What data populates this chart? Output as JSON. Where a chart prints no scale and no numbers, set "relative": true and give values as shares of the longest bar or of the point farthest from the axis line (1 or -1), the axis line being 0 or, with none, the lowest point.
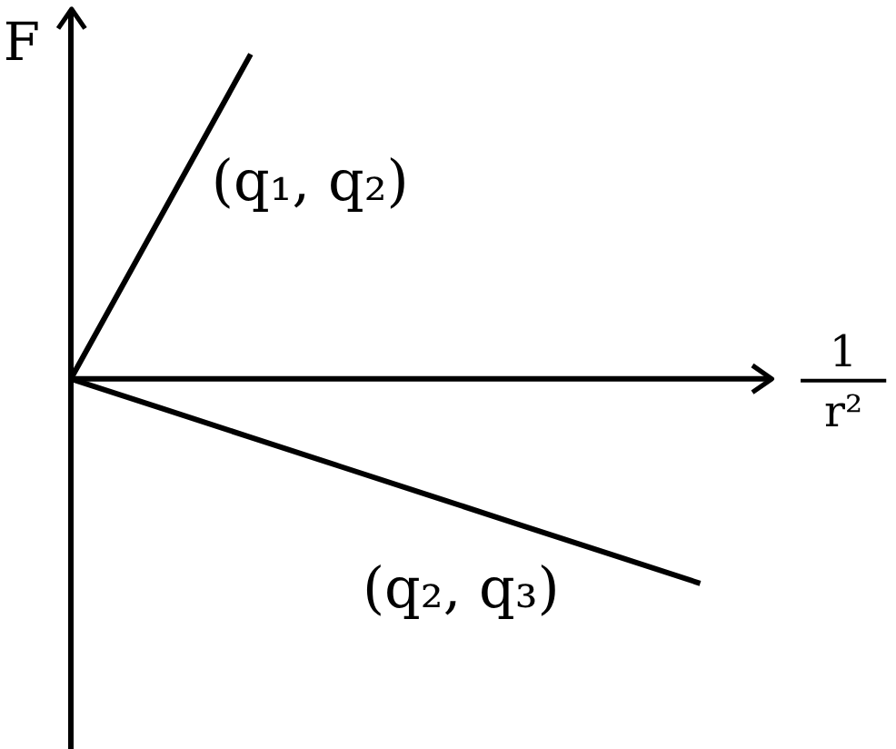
{
  "chart_data": {
    "type": "line",
    "ylabel": "F",
    "xlabel": "1\nr²",
    "relative": true,
    "categories": [
      null,
      null,
      null,
      null,
      null,
      null,
      null,
      null
    ],
    "series": [
      {
        "name": "(q₁, q₂)",
        "color": "#000000",
        "values": [
          0,
          0.5,
          1,
          null,
          null,
          null,
          null,
          null
        ]
      },
      {
        "name": "(q₂, q₃)",
        "color": "#000000",
        "values": [
          0,
          -0.09,
          -0.18,
          -0.27,
          -0.36,
          -0.45,
          -0.54,
          -0.63
        ]
      }
    ]
  }
}
